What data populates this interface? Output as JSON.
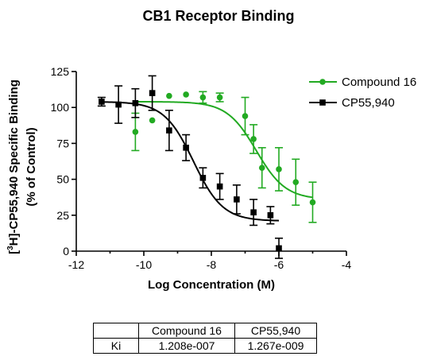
{
  "chart_data": {
    "type": "scatter",
    "title": "CB1 Receptor Binding",
    "xlabel": "Log Concentration (M)",
    "ylabel_parts": [
      "[",
      "3",
      "H]-CP55,940 Specific Binding"
    ],
    "ylabel_line2": "(% of Control)",
    "xlim": [
      -12,
      -4
    ],
    "ylim": [
      0,
      125
    ],
    "xticks": [
      -12,
      -10,
      -8,
      -6,
      -4
    ],
    "yticks": [
      0,
      25,
      50,
      75,
      100,
      125
    ],
    "legend_position": "top-right",
    "series": [
      {
        "name": "Compound 16",
        "color": "#22aa22",
        "marker": "circle",
        "points": [
          {
            "x": -10.25,
            "y": 83,
            "err": 13
          },
          {
            "x": -9.75,
            "y": 91,
            "err": 0
          },
          {
            "x": -9.25,
            "y": 108,
            "err": 0
          },
          {
            "x": -8.75,
            "y": 109,
            "err": 0
          },
          {
            "x": -8.25,
            "y": 107,
            "err": 4
          },
          {
            "x": -7.75,
            "y": 107,
            "err": 3
          },
          {
            "x": -7.0,
            "y": 94,
            "err": 13
          },
          {
            "x": -6.75,
            "y": 78,
            "err": 10
          },
          {
            "x": -6.5,
            "y": 58,
            "err": 14
          },
          {
            "x": -6.0,
            "y": 57,
            "err": 15
          },
          {
            "x": -5.5,
            "y": 48,
            "err": 16
          },
          {
            "x": -5.0,
            "y": 34,
            "err": 14
          }
        ],
        "fit": {
          "top": 104,
          "bottom": 36,
          "logEC50": -6.67,
          "hill": -1
        }
      },
      {
        "name": "CP55,940",
        "color": "#000000",
        "marker": "square",
        "points": [
          {
            "x": -11.25,
            "y": 104,
            "err": 3
          },
          {
            "x": -10.75,
            "y": 102,
            "err": 13
          },
          {
            "x": -10.25,
            "y": 103,
            "err": 10
          },
          {
            "x": -9.75,
            "y": 110,
            "err": 12
          },
          {
            "x": -9.25,
            "y": 84,
            "err": 14
          },
          {
            "x": -8.75,
            "y": 72,
            "err": 9
          },
          {
            "x": -8.25,
            "y": 51,
            "err": 7
          },
          {
            "x": -7.75,
            "y": 45,
            "err": 9
          },
          {
            "x": -7.25,
            "y": 36,
            "err": 10
          },
          {
            "x": -6.75,
            "y": 27,
            "err": 9
          },
          {
            "x": -6.25,
            "y": 25,
            "err": 6
          },
          {
            "x": -6.0,
            "y": 2,
            "err": 7
          }
        ],
        "fit": {
          "top": 104,
          "bottom": 21,
          "logEC50": -8.53,
          "hill": -1
        }
      }
    ]
  },
  "ki_table": {
    "headers": [
      "",
      "Compound 16",
      "CP55,940"
    ],
    "row_label": "Ki",
    "values": [
      "1.208e-007",
      "1.267e-009"
    ]
  }
}
